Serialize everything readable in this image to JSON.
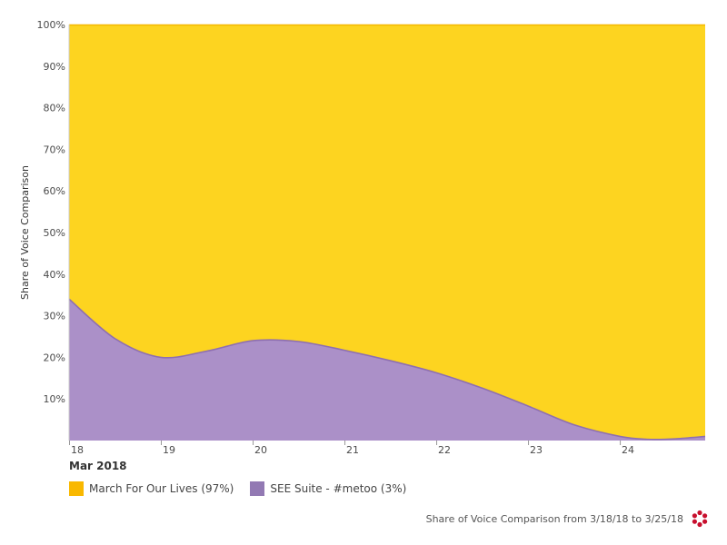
{
  "chart_data": {
    "type": "area",
    "stacked": "percent",
    "ylabel": "Share of Voice Comparison",
    "xlabel_sub": "Mar 2018",
    "y_ticks": [
      "10%",
      "20%",
      "30%",
      "40%",
      "50%",
      "60%",
      "70%",
      "80%",
      "90%",
      "100%"
    ],
    "x_ticks": [
      "18",
      "19",
      "20",
      "21",
      "22",
      "23",
      "24"
    ],
    "ylim": [
      0,
      100
    ],
    "xlim": [
      18,
      24.93
    ],
    "series": [
      {
        "name": "SEE Suite - #metoo (3%)",
        "color": "#ab90c8",
        "line_color": "#8e6fb0",
        "x": [
          18,
          18.5,
          19,
          19.5,
          20,
          20.5,
          21,
          21.5,
          22,
          22.5,
          23,
          23.5,
          24,
          24.3,
          24.6,
          24.93
        ],
        "values": [
          34,
          24.5,
          20,
          21.5,
          24,
          23.8,
          21.7,
          19.2,
          16.3,
          12.6,
          8.3,
          3.8,
          1,
          0.3,
          0.4,
          1
        ]
      },
      {
        "name": "March For Our Lives (97%)",
        "color": "#fdd420",
        "line_color": "#f5b800",
        "values_are_remainder_to_100": true
      }
    ],
    "legend_position": "bottom-left",
    "grid": false
  },
  "legend": {
    "items": [
      {
        "label": "March For Our Lives (97%)",
        "color": "#f9b800"
      },
      {
        "label": "SEE Suite - #metoo (3%)",
        "color": "#9279b3"
      }
    ]
  },
  "footer": {
    "text": "Share of Voice Comparison from 3/18/18 to 3/25/18",
    "logo_color": "#c8102e"
  }
}
